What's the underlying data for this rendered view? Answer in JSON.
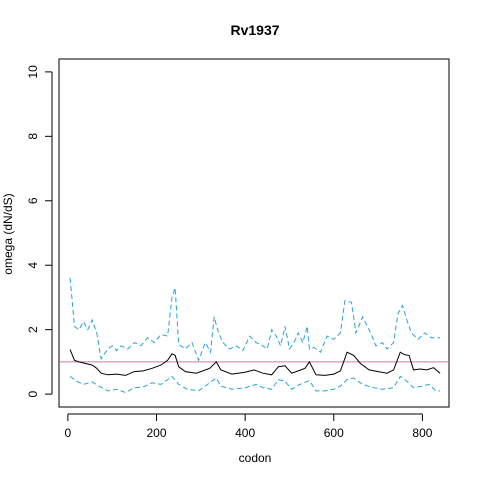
{
  "chart_data": {
    "type": "line",
    "title": "Rv1937",
    "xlabel": "codon",
    "ylabel": "omega (dN/dS)",
    "xlim": [
      -20,
      860
    ],
    "ylim": [
      -0.4,
      10.4
    ],
    "x_ticks": [
      0,
      200,
      400,
      600,
      800
    ],
    "y_ticks": [
      0,
      2,
      4,
      6,
      8,
      10
    ],
    "x_tick_labels": [
      "0",
      "200",
      "400",
      "600",
      "800"
    ],
    "y_tick_labels": [
      "0",
      "2",
      "4",
      "6",
      "8",
      "10"
    ],
    "reference_line": {
      "y": 1.0,
      "color": "#cc79a7"
    },
    "grid": false,
    "series": [
      {
        "role": "estimate",
        "style": "solid",
        "color": "#000000",
        "x": [
          5,
          15,
          25,
          40,
          55,
          65,
          75,
          90,
          110,
          130,
          150,
          170,
          190,
          210,
          225,
          235,
          242,
          250,
          265,
          290,
          320,
          335,
          345,
          370,
          400,
          420,
          440,
          460,
          475,
          490,
          505,
          520,
          535,
          545,
          560,
          580,
          600,
          615,
          630,
          645,
          660,
          680,
          700,
          720,
          735,
          750,
          760,
          770,
          780,
          795,
          810,
          825,
          840
        ],
        "y": [
          1.38,
          1.05,
          1.0,
          0.95,
          0.9,
          0.8,
          0.65,
          0.6,
          0.62,
          0.58,
          0.7,
          0.72,
          0.8,
          0.9,
          1.05,
          1.25,
          1.2,
          0.85,
          0.7,
          0.65,
          0.8,
          1.0,
          0.75,
          0.62,
          0.68,
          0.75,
          0.65,
          0.6,
          0.85,
          0.88,
          0.65,
          0.72,
          0.8,
          1.0,
          0.6,
          0.58,
          0.62,
          0.72,
          1.3,
          1.2,
          0.95,
          0.75,
          0.7,
          0.65,
          0.75,
          1.3,
          1.22,
          1.2,
          0.75,
          0.78,
          0.75,
          0.82,
          0.65
        ]
      },
      {
        "role": "upper bound",
        "style": "dashed",
        "color": "#29a3d6",
        "x": [
          5,
          15,
          25,
          35,
          45,
          55,
          65,
          75,
          90,
          100,
          110,
          120,
          135,
          150,
          165,
          180,
          195,
          210,
          225,
          235,
          242,
          250,
          265,
          280,
          295,
          310,
          322,
          330,
          340,
          350,
          365,
          380,
          395,
          410,
          425,
          440,
          450,
          460,
          470,
          480,
          490,
          500,
          510,
          520,
          530,
          540,
          545,
          555,
          570,
          585,
          600,
          615,
          625,
          640,
          650,
          665,
          680,
          695,
          710,
          720,
          735,
          745,
          755,
          765,
          775,
          790,
          805,
          820,
          840
        ],
        "y": [
          3.6,
          2.1,
          2.0,
          2.25,
          2.0,
          2.3,
          1.9,
          1.1,
          1.4,
          1.5,
          1.35,
          1.5,
          1.4,
          1.6,
          1.5,
          1.75,
          1.6,
          1.85,
          1.8,
          3.0,
          3.3,
          1.55,
          1.4,
          1.6,
          1.05,
          1.6,
          1.3,
          2.4,
          1.9,
          1.6,
          1.4,
          1.5,
          1.35,
          1.8,
          1.6,
          1.5,
          1.4,
          2.0,
          1.8,
          1.5,
          2.1,
          1.4,
          1.6,
          1.9,
          1.6,
          2.1,
          1.4,
          1.45,
          1.3,
          1.8,
          1.7,
          1.9,
          2.9,
          2.85,
          1.9,
          2.4,
          2.0,
          1.5,
          1.6,
          1.4,
          1.6,
          2.5,
          2.75,
          2.3,
          1.9,
          1.7,
          1.9,
          1.75,
          1.75
        ]
      },
      {
        "role": "lower bound",
        "style": "dashed",
        "color": "#29a3d6",
        "x": [
          5,
          20,
          35,
          55,
          70,
          90,
          110,
          130,
          150,
          170,
          190,
          210,
          225,
          235,
          250,
          270,
          295,
          320,
          335,
          345,
          370,
          400,
          425,
          440,
          460,
          475,
          490,
          505,
          520,
          545,
          560,
          580,
          600,
          615,
          630,
          645,
          665,
          690,
          710,
          735,
          750,
          765,
          780,
          800,
          815,
          830,
          840
        ],
        "y": [
          0.55,
          0.4,
          0.3,
          0.38,
          0.25,
          0.1,
          0.15,
          0.05,
          0.2,
          0.22,
          0.35,
          0.3,
          0.45,
          0.55,
          0.3,
          0.15,
          0.1,
          0.35,
          0.5,
          0.25,
          0.15,
          0.2,
          0.3,
          0.2,
          0.15,
          0.45,
          0.4,
          0.15,
          0.28,
          0.42,
          0.1,
          0.1,
          0.15,
          0.25,
          0.45,
          0.5,
          0.3,
          0.2,
          0.15,
          0.2,
          0.55,
          0.4,
          0.2,
          0.25,
          0.3,
          0.1,
          0.1
        ]
      }
    ]
  }
}
